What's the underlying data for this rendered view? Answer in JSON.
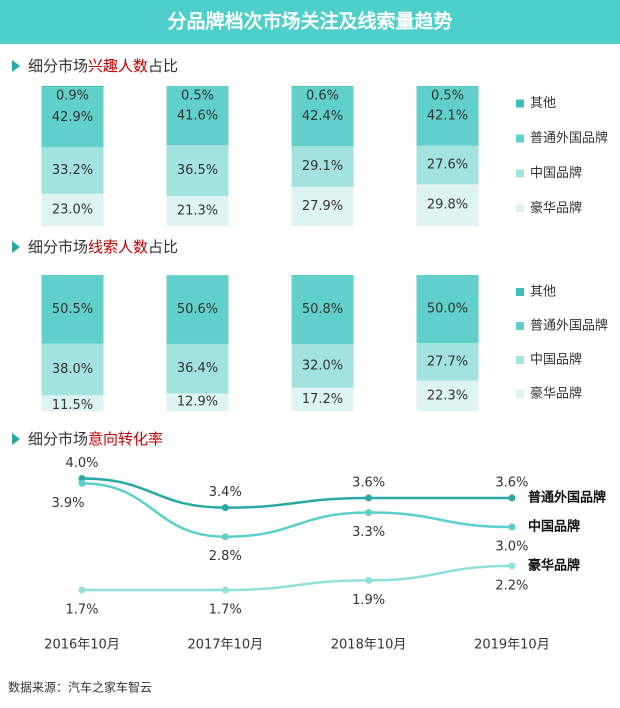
{
  "header": {
    "title": "分品牌档次市场关注及线索量趋势"
  },
  "source": "数据来源：汽车之家车智云",
  "chart_data": [
    {
      "type": "stacked-bar",
      "title": [
        "细分市场",
        "兴趣人数",
        "占比"
      ],
      "ylim": [
        0,
        100
      ],
      "series": [
        {
          "name": "豪华品牌",
          "color": "#ddf4f2",
          "values": [
            23.0,
            21.3,
            27.9,
            29.8
          ],
          "value_labels": [
            "23.0%",
            "21.3%",
            "27.9%",
            "29.8%"
          ]
        },
        {
          "name": "中国品牌",
          "color": "#a3e3df",
          "values": [
            33.2,
            36.5,
            29.1,
            27.6
          ],
          "value_labels": [
            "33.2%",
            "36.5%",
            "29.1%",
            "27.6%"
          ]
        },
        {
          "name": "普通外国品牌",
          "color": "#61cfca",
          "values": [
            42.9,
            41.6,
            42.4,
            42.1
          ],
          "value_labels": [
            "42.9%",
            "41.6%",
            "42.4%",
            "42.1%"
          ]
        },
        {
          "name": "其他",
          "color": "#3cbfba",
          "values": [
            0.9,
            0.5,
            0.6,
            0.5
          ],
          "value_labels": [
            "0.9%",
            "0.5%",
            "0.6%",
            "0.5%"
          ]
        }
      ]
    },
    {
      "type": "stacked-bar",
      "title": [
        "细分市场",
        "线索人数",
        "占比"
      ],
      "ylim": [
        0,
        100
      ],
      "series": [
        {
          "name": "豪华品牌",
          "color": "#ddf4f2",
          "values": [
            11.5,
            12.9,
            17.2,
            22.3
          ],
          "value_labels": [
            "11.5%",
            "12.9%",
            "17.2%",
            "22.3%"
          ]
        },
        {
          "name": "中国品牌",
          "color": "#a3e3df",
          "values": [
            38.0,
            36.4,
            32.0,
            27.7
          ],
          "value_labels": [
            "38.0%",
            "36.4%",
            "32.0%",
            "27.7%"
          ]
        },
        {
          "name": "普通外国品牌",
          "color": "#61cfca",
          "values": [
            50.5,
            50.6,
            50.8,
            50.0
          ],
          "value_labels": [
            "50.5%",
            "50.6%",
            "50.8%",
            "50.0%"
          ]
        },
        {
          "name": "其他",
          "color": "#3cbfba",
          "values": [
            null,
            null,
            null,
            null
          ]
        }
      ]
    },
    {
      "type": "line",
      "title": [
        "细分市场",
        "意向转化率",
        ""
      ],
      "ylim": [
        1,
        4.3
      ],
      "categories": [
        "2016年10月",
        "2017年10月",
        "2018年10月",
        "2019年10月"
      ],
      "series": [
        {
          "name": "普通外国品牌",
          "color": "#2aa9a4",
          "values": [
            4.0,
            3.4,
            3.6,
            3.6
          ],
          "value_labels": [
            "4.0%",
            "3.4%",
            "3.6%",
            "3.6%"
          ]
        },
        {
          "name": "中国品牌",
          "color": "#5ccfca",
          "values": [
            3.9,
            2.8,
            3.3,
            3.0
          ],
          "value_labels": [
            "3.9%",
            "2.8%",
            "3.3%",
            "3.0%"
          ]
        },
        {
          "name": "豪华品牌",
          "color": "#8fe0dc",
          "values": [
            1.7,
            1.7,
            1.9,
            2.2
          ],
          "value_labels": [
            "1.7%",
            "1.7%",
            "1.9%",
            "2.2%"
          ]
        }
      ]
    }
  ]
}
